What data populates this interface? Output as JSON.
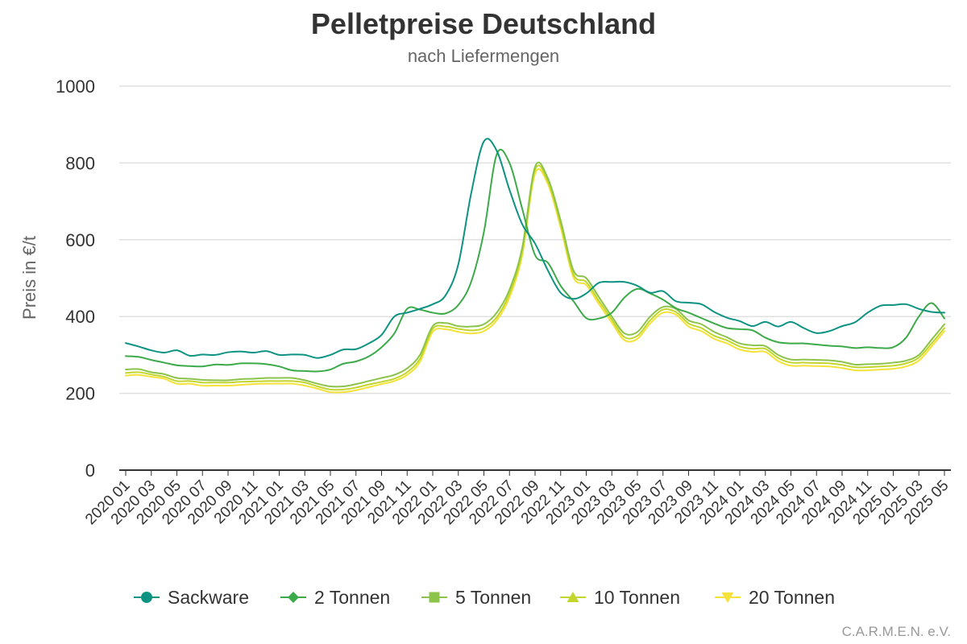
{
  "chart_data": {
    "type": "line",
    "title": "Pelletpreise Deutschland",
    "subtitle": "nach Liefermengen",
    "xlabel": "",
    "ylabel": "Preis in €/t",
    "ylim": [
      0,
      1000
    ],
    "yticks": [
      0,
      200,
      400,
      600,
      800,
      1000
    ],
    "grid": true,
    "legend_position": "bottom",
    "credit": "C.A.R.M.E.N. e.V.",
    "x": [
      "2020 01",
      "2020 02",
      "2020 03",
      "2020 04",
      "2020 05",
      "2020 06",
      "2020 07",
      "2020 08",
      "2020 09",
      "2020 10",
      "2020 11",
      "2020 12",
      "2021 01",
      "2021 02",
      "2021 03",
      "2021 04",
      "2021 05",
      "2021 06",
      "2021 07",
      "2021 08",
      "2021 09",
      "2021 10",
      "2021 11",
      "2021 12",
      "2022 01",
      "2022 02",
      "2022 03",
      "2022 04",
      "2022 05",
      "2022 06",
      "2022 07",
      "2022 08",
      "2022 09",
      "2022 10",
      "2022 11",
      "2022 12",
      "2023 01",
      "2023 02",
      "2023 03",
      "2023 04",
      "2023 05",
      "2023 06",
      "2023 07",
      "2023 08",
      "2023 09",
      "2023 10",
      "2023 11",
      "2023 12",
      "2024 01",
      "2024 02",
      "2024 03",
      "2024 04",
      "2024 05",
      "2024 06",
      "2024 07",
      "2024 08",
      "2024 09",
      "2024 10",
      "2024 11",
      "2024 12",
      "2025 01",
      "2025 02",
      "2025 03",
      "2025 04",
      "2025 05"
    ],
    "x_tick_labels": [
      "2020 01",
      "2020 03",
      "2020 05",
      "2020 07",
      "2020 09",
      "2020 11",
      "2021 01",
      "2021 03",
      "2021 05",
      "2021 07",
      "2021 09",
      "2021 11",
      "2022 01",
      "2022 03",
      "2022 05",
      "2022 07",
      "2022 09",
      "2022 11",
      "2023 01",
      "2023 03",
      "2023 05",
      "2023 07",
      "2023 09",
      "2023 11",
      "2024 01",
      "2024 03",
      "2024 05",
      "2024 07",
      "2024 09",
      "2024 11",
      "2025 01",
      "2025 03",
      "2025 05"
    ],
    "series": [
      {
        "name": "Sackware",
        "color": "#0e9383",
        "marker": "circle",
        "values": [
          331,
          322,
          312,
          306,
          312,
          298,
          301,
          300,
          307,
          309,
          306,
          310,
          300,
          301,
          300,
          292,
          300,
          314,
          315,
          330,
          352,
          400,
          410,
          420,
          432,
          455,
          536,
          720,
          856,
          832,
          730,
          640,
          590,
          520,
          462,
          446,
          460,
          488,
          490,
          490,
          480,
          462,
          466,
          440,
          436,
          432,
          412,
          397,
          388,
          375,
          386,
          374,
          386,
          370,
          357,
          362,
          375,
          385,
          410,
          428,
          430,
          432,
          420,
          412,
          410
        ]
      },
      {
        "name": "2 Tonnen",
        "color": "#3daa4a",
        "marker": "diamond",
        "values": [
          297,
          295,
          287,
          280,
          273,
          271,
          270,
          275,
          274,
          278,
          278,
          276,
          270,
          260,
          258,
          257,
          262,
          277,
          283,
          296,
          320,
          356,
          420,
          418,
          410,
          408,
          430,
          490,
          620,
          822,
          800,
          680,
          560,
          540,
          480,
          440,
          396,
          395,
          410,
          450,
          472,
          460,
          444,
          422,
          410,
          396,
          382,
          370,
          367,
          364,
          345,
          333,
          330,
          330,
          327,
          324,
          322,
          318,
          320,
          318,
          320,
          345,
          400,
          435,
          395
        ]
      },
      {
        "name": "5 Tonnen",
        "color": "#8cc34a",
        "marker": "square",
        "values": [
          262,
          263,
          255,
          250,
          240,
          238,
          235,
          234,
          234,
          237,
          238,
          240,
          240,
          240,
          234,
          225,
          218,
          218,
          224,
          232,
          240,
          248,
          265,
          300,
          375,
          383,
          375,
          374,
          380,
          410,
          470,
          580,
          790,
          760,
          650,
          520,
          500,
          450,
          400,
          356,
          360,
          400,
          425,
          420,
          390,
          380,
          360,
          346,
          330,
          325,
          323,
          300,
          288,
          288,
          287,
          286,
          282,
          275,
          276,
          277,
          280,
          285,
          300,
          340,
          380
        ]
      },
      {
        "name": "10 Tonnen",
        "color": "#c2d62c",
        "marker": "triangle-up",
        "values": [
          253,
          255,
          249,
          243,
          232,
          232,
          228,
          228,
          228,
          230,
          231,
          232,
          232,
          232,
          228,
          218,
          210,
          210,
          215,
          223,
          230,
          238,
          255,
          290,
          368,
          374,
          368,
          364,
          370,
          398,
          460,
          570,
          782,
          752,
          640,
          510,
          490,
          440,
          392,
          346,
          350,
          390,
          418,
          412,
          382,
          370,
          350,
          338,
          322,
          316,
          316,
          292,
          280,
          280,
          279,
          278,
          274,
          268,
          268,
          270,
          272,
          278,
          293,
          330,
          370
        ]
      },
      {
        "name": "20 Tonnen",
        "color": "#f4e23a",
        "marker": "triangle-down",
        "values": [
          246,
          248,
          243,
          238,
          225,
          225,
          220,
          220,
          220,
          222,
          224,
          225,
          225,
          225,
          220,
          212,
          203,
          203,
          208,
          216,
          224,
          232,
          248,
          282,
          360,
          367,
          360,
          356,
          362,
          390,
          450,
          560,
          772,
          745,
          632,
          502,
          482,
          432,
          384,
          338,
          342,
          382,
          410,
          405,
          374,
          362,
          342,
          330,
          314,
          308,
          308,
          284,
          272,
          272,
          271,
          270,
          266,
          260,
          260,
          262,
          264,
          270,
          285,
          322,
          362
        ]
      }
    ]
  }
}
